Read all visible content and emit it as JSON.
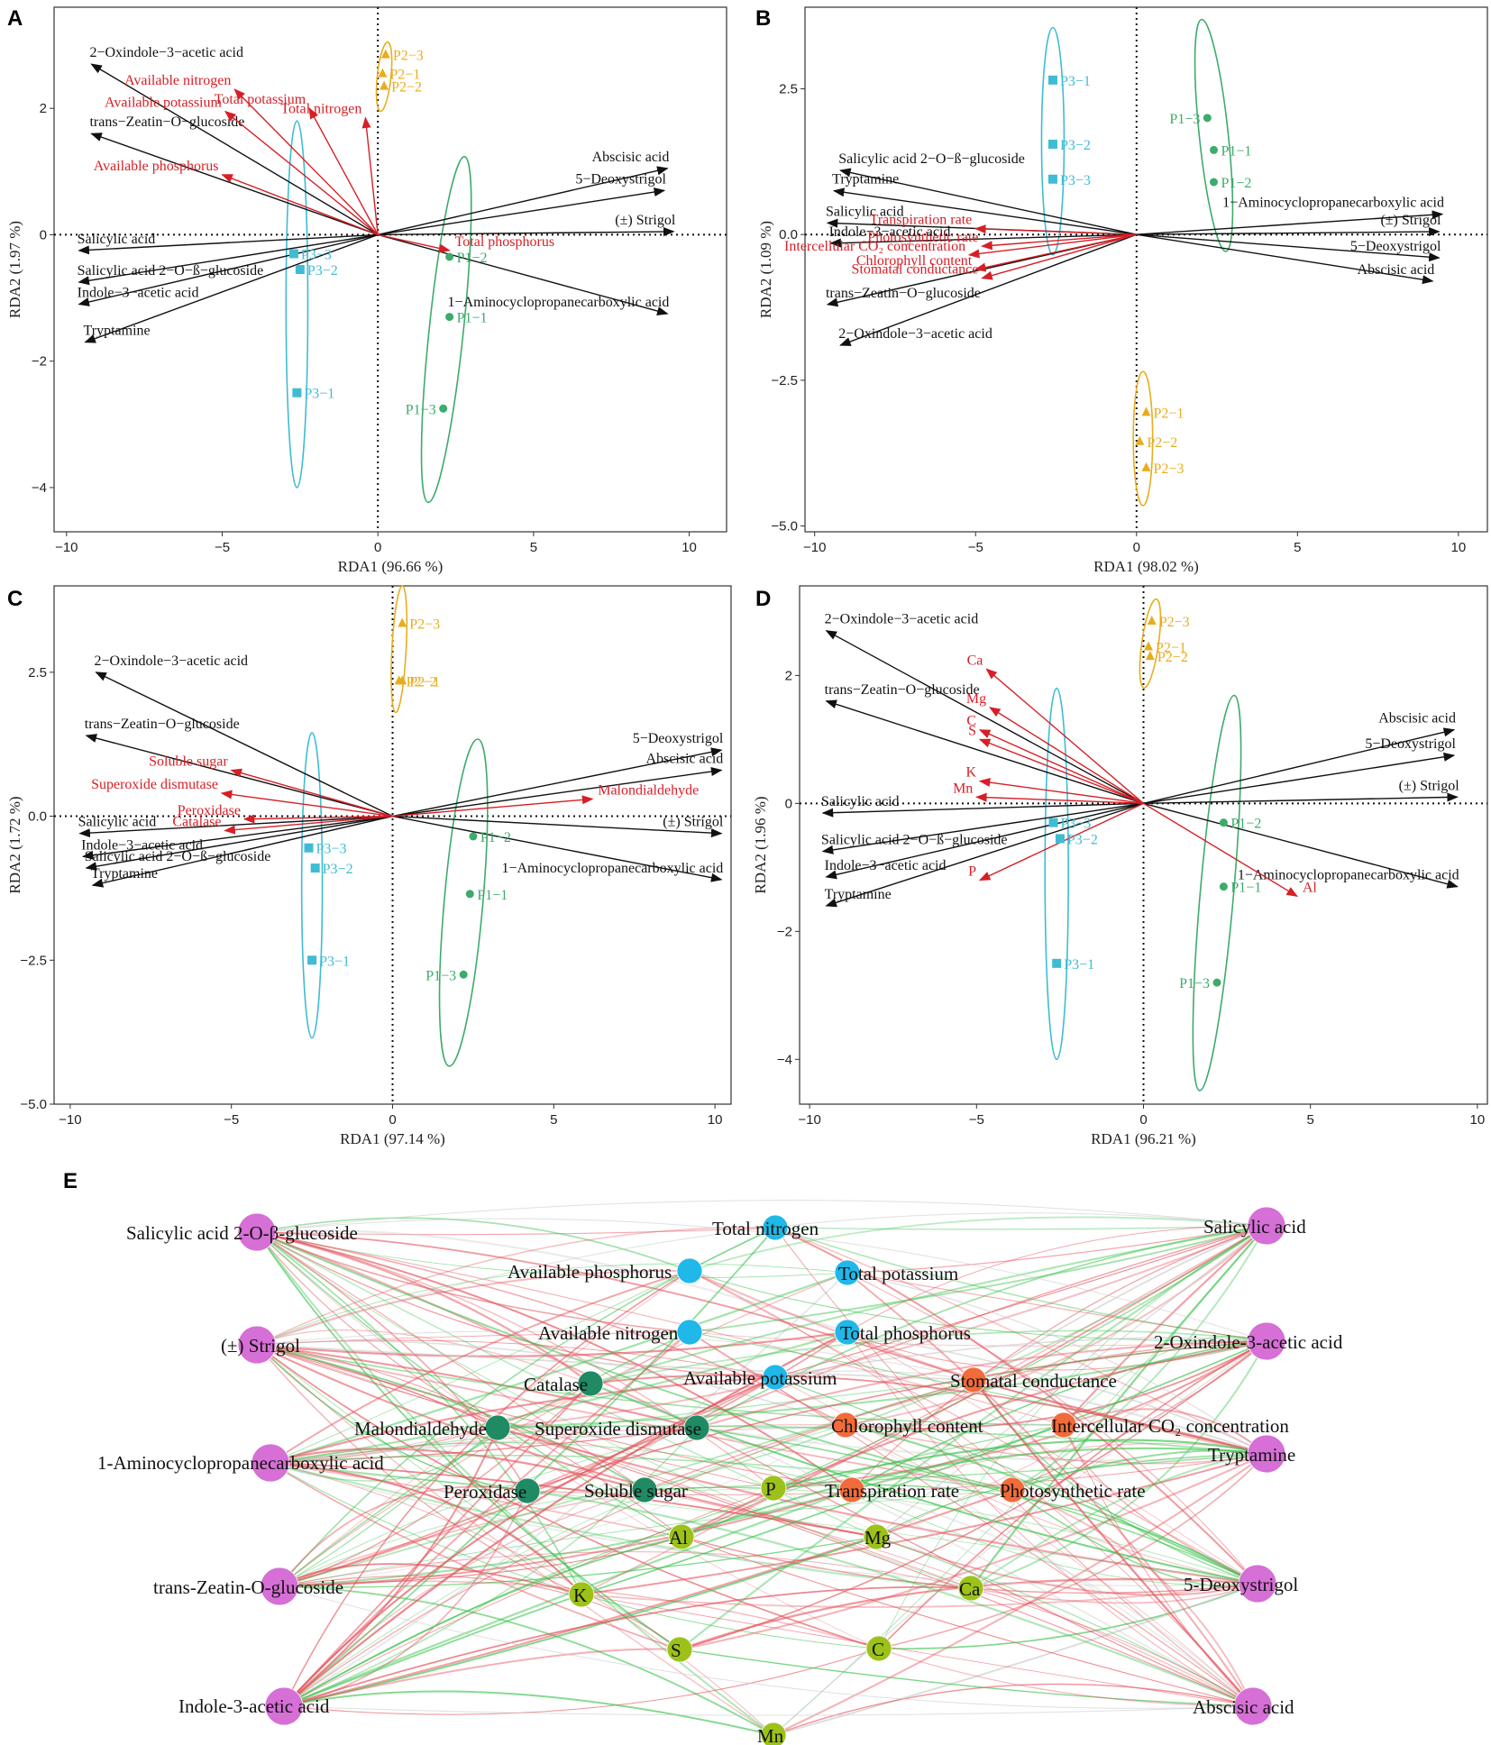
{
  "colors": {
    "P1": "#3dab6b",
    "P2": "#e8ad1f",
    "P3": "#3fbcd3",
    "hormone_arrow": "#111111",
    "env_arrow": "#d61f26",
    "hormone_node": "#d66fd6",
    "soil_node": "#1fb8e8",
    "enzyme_node": "#1f8a63",
    "photo_node": "#f26b3a",
    "mineral_node": "#9cc21a",
    "pos_edge": "#e5505a",
    "neg_edge": "#3dc44f",
    "weak_edge": "#cccccc"
  },
  "chart_data": [
    {
      "panel": "A",
      "type": "scatter",
      "xlabel": "RDA1 (96.66 %)",
      "ylabel": "RDA2 (1.97 %)",
      "xlim": [
        -10.4,
        11.2
      ],
      "ylim": [
        -4.7,
        3.6
      ],
      "xticks": [
        -10,
        -5,
        0,
        5,
        10
      ],
      "yticks": [
        -4,
        -2,
        0,
        2
      ],
      "hormones": [
        {
          "name": "2−Oxindole−3−acetic acid",
          "x": -9.2,
          "y": 2.7
        },
        {
          "name": "trans−Zeatin−O−glucoside",
          "x": -9.2,
          "y": 1.6
        },
        {
          "name": "Salicylic acid",
          "x": -9.6,
          "y": -0.25
        },
        {
          "name": "Salicylic acid 2−O−ß−glucoside",
          "x": -9.6,
          "y": -0.75
        },
        {
          "name": "Indole−3−acetic acid",
          "x": -9.6,
          "y": -1.1
        },
        {
          "name": "Tryptamine",
          "x": -9.4,
          "y": -1.7
        },
        {
          "name": "Abscisic acid",
          "x": 9.3,
          "y": 1.05
        },
        {
          "name": "5−Deoxystrigol",
          "x": 9.2,
          "y": 0.7
        },
        {
          "name": "(±) Strigol",
          "x": 9.5,
          "y": 0.05
        },
        {
          "name": "1−Aminocyclopropanecarboxylic acid",
          "x": 9.3,
          "y": -1.25
        }
      ],
      "environment": [
        {
          "name": "Available nitrogen",
          "x": -4.6,
          "y": 2.3
        },
        {
          "name": "Available potassium",
          "x": -4.9,
          "y": 1.95
        },
        {
          "name": "Total potassium",
          "x": -2.2,
          "y": 2.0
        },
        {
          "name": "Total nitrogen",
          "x": -0.4,
          "y": 1.85
        },
        {
          "name": "Available phosphorus",
          "x": -5.0,
          "y": 0.95
        },
        {
          "name": "Total phosphorus",
          "x": 2.3,
          "y": -0.25
        }
      ],
      "samples": [
        {
          "name": "P1−1",
          "group": "P1",
          "x": 2.3,
          "y": -1.3
        },
        {
          "name": "P1−2",
          "group": "P1",
          "x": 2.3,
          "y": -0.35
        },
        {
          "name": "P1−3",
          "group": "P1",
          "x": 2.1,
          "y": -2.75
        },
        {
          "name": "P2−1",
          "group": "P2",
          "x": 0.15,
          "y": 2.55
        },
        {
          "name": "P2−2",
          "group": "P2",
          "x": 0.2,
          "y": 2.35
        },
        {
          "name": "P2−3",
          "group": "P2",
          "x": 0.25,
          "y": 2.85
        },
        {
          "name": "P3−1",
          "group": "P3",
          "x": -2.6,
          "y": -2.5
        },
        {
          "name": "P3−2",
          "group": "P3",
          "x": -2.5,
          "y": -0.55
        },
        {
          "name": "P3−3",
          "group": "P3",
          "x": -2.7,
          "y": -0.3
        }
      ],
      "ellipses": [
        {
          "group": "P1",
          "cx": 2.2,
          "cy": -1.5,
          "rx": 0.55,
          "ry": 2.75,
          "rot": 6
        },
        {
          "group": "P2",
          "cx": 0.2,
          "cy": 2.5,
          "rx": 0.22,
          "ry": 0.55,
          "rot": 6
        },
        {
          "group": "P3",
          "cx": -2.6,
          "cy": -1.1,
          "rx": 0.35,
          "ry": 2.9,
          "rot": 0
        }
      ]
    },
    {
      "panel": "B",
      "type": "scatter",
      "xlabel": "RDA1 (98.02 %)",
      "ylabel": "RDA2 (1.09 %)",
      "xlim": [
        -10.3,
        10.9
      ],
      "ylim": [
        -5.1,
        3.9
      ],
      "xticks": [
        -10,
        -5,
        0,
        5,
        10
      ],
      "yticks": [
        -5.0,
        -2.5,
        0.0,
        2.5
      ],
      "hormones": [
        {
          "name": "Salicylic acid 2−O−ß−glucoside",
          "x": -9.2,
          "y": 1.1
        },
        {
          "name": "Tryptamine",
          "x": -9.4,
          "y": 0.75
        },
        {
          "name": "Salicylic acid",
          "x": -9.6,
          "y": 0.2
        },
        {
          "name": "Indole−3−acetic acid",
          "x": -9.5,
          "y": -0.15
        },
        {
          "name": "trans−Zeatin−O−glucoside",
          "x": -9.6,
          "y": -1.2
        },
        {
          "name": "2−Oxindole−3−acetic acid",
          "x": -9.2,
          "y": -1.9
        },
        {
          "name": "1−Aminocyclopropanecarboxylic acid",
          "x": 9.5,
          "y": 0.35
        },
        {
          "name": "(±) Strigol",
          "x": 9.4,
          "y": 0.05
        },
        {
          "name": "5−Deoxystrigol",
          "x": 9.4,
          "y": -0.4
        },
        {
          "name": "Abscisic acid",
          "x": 9.2,
          "y": -0.8
        }
      ],
      "environment": [
        {
          "name": "Transpiration rate",
          "x": -5.0,
          "y": 0.1
        },
        {
          "name": "Photosynthetic rate",
          "x": -4.8,
          "y": -0.2
        },
        {
          "name": "Intercellular CO₂ concentration",
          "x": -5.2,
          "y": -0.35
        },
        {
          "name": "Chlorophyll content",
          "x": -5.0,
          "y": -0.6
        },
        {
          "name": "Stomatal conductance",
          "x": -4.8,
          "y": -0.75
        }
      ],
      "samples": [
        {
          "name": "P1−1",
          "group": "P1",
          "x": 2.4,
          "y": 1.45
        },
        {
          "name": "P1−2",
          "group": "P1",
          "x": 2.4,
          "y": 0.9
        },
        {
          "name": "P1−3",
          "group": "P1",
          "x": 2.2,
          "y": 2.0
        },
        {
          "name": "P2−1",
          "group": "P2",
          "x": 0.3,
          "y": -3.05
        },
        {
          "name": "P2−2",
          "group": "P2",
          "x": 0.1,
          "y": -3.55
        },
        {
          "name": "P2−3",
          "group": "P2",
          "x": 0.3,
          "y": -4.0
        },
        {
          "name": "P3−1",
          "group": "P3",
          "x": -2.6,
          "y": 2.65
        },
        {
          "name": "P3−2",
          "group": "P3",
          "x": -2.6,
          "y": 1.55
        },
        {
          "name": "P3−3",
          "group": "P3",
          "x": -2.6,
          "y": 0.95
        }
      ],
      "ellipses": [
        {
          "group": "P1",
          "cx": 2.4,
          "cy": 1.7,
          "rx": 0.45,
          "ry": 2.0,
          "rot": -6
        },
        {
          "group": "P2",
          "cx": 0.2,
          "cy": -3.5,
          "rx": 0.3,
          "ry": 1.15,
          "rot": 0
        },
        {
          "group": "P3",
          "cx": -2.6,
          "cy": 1.6,
          "rx": 0.35,
          "ry": 1.95,
          "rot": 0
        }
      ]
    },
    {
      "panel": "C",
      "type": "scatter",
      "xlabel": "RDA1 (97.14 %)",
      "ylabel": "RDA2 (1.72 %)",
      "xlim": [
        -10.5,
        10.5
      ],
      "ylim": [
        -5.0,
        4.0
      ],
      "xticks": [
        -10,
        -5,
        0,
        5,
        10
      ],
      "yticks": [
        -5.0,
        -2.5,
        0.0,
        2.5
      ],
      "hormones": [
        {
          "name": "2−Oxindole−3−acetic acid",
          "x": -9.2,
          "y": 2.5
        },
        {
          "name": "trans−Zeatin−O−glucoside",
          "x": -9.5,
          "y": 1.4
        },
        {
          "name": "Salicylic acid",
          "x": -9.7,
          "y": -0.3
        },
        {
          "name": "Indole−3−acetic acid",
          "x": -9.6,
          "y": -0.7
        },
        {
          "name": "Salicylic acid 2−O−ß−glucoside",
          "x": -9.5,
          "y": -0.9
        },
        {
          "name": "Tryptamine",
          "x": -9.3,
          "y": -1.2
        },
        {
          "name": "5−Deoxystrigol",
          "x": 10.2,
          "y": 1.15
        },
        {
          "name": "Abscisic acid",
          "x": 10.2,
          "y": 0.8
        },
        {
          "name": "(±) Strigol",
          "x": 10.2,
          "y": -0.3
        },
        {
          "name": "1−Aminocyclopropanecarboxylic acid",
          "x": 10.2,
          "y": -1.1
        }
      ],
      "environment": [
        {
          "name": "Soluble sugar",
          "x": -5.0,
          "y": 0.8
        },
        {
          "name": "Superoxide dismutase",
          "x": -5.3,
          "y": 0.4
        },
        {
          "name": "Peroxidase",
          "x": -4.6,
          "y": -0.05
        },
        {
          "name": "Catalase",
          "x": -5.2,
          "y": -0.25
        },
        {
          "name": "Malondialdehyde",
          "x": 6.2,
          "y": 0.3
        }
      ],
      "samples": [
        {
          "name": "P1−1",
          "group": "P1",
          "x": 2.4,
          "y": -1.35
        },
        {
          "name": "P1−2",
          "group": "P1",
          "x": 2.5,
          "y": -0.35
        },
        {
          "name": "P1−3",
          "group": "P1",
          "x": 2.2,
          "y": -2.75
        },
        {
          "name": "P2−1",
          "group": "P2",
          "x": 0.3,
          "y": 2.35
        },
        {
          "name": "P2−2",
          "group": "P2",
          "x": 0.2,
          "y": 2.35
        },
        {
          "name": "P2−3",
          "group": "P2",
          "x": 0.3,
          "y": 3.35
        },
        {
          "name": "P3−1",
          "group": "P3",
          "x": -2.5,
          "y": -2.5
        },
        {
          "name": "P3−2",
          "group": "P3",
          "x": -2.4,
          "y": -0.9
        },
        {
          "name": "P3−3",
          "group": "P3",
          "x": -2.6,
          "y": -0.55
        }
      ],
      "ellipses": [
        {
          "group": "P1",
          "cx": 2.2,
          "cy": -1.5,
          "rx": 0.6,
          "ry": 2.85,
          "rot": 5
        },
        {
          "group": "P2",
          "cx": 0.2,
          "cy": 2.9,
          "rx": 0.22,
          "ry": 1.1,
          "rot": 3
        },
        {
          "group": "P3",
          "cx": -2.5,
          "cy": -1.2,
          "rx": 0.32,
          "ry": 2.65,
          "rot": 0
        }
      ]
    },
    {
      "panel": "D",
      "type": "scatter",
      "xlabel": "RDA1 (96.21 %)",
      "ylabel": "RDA2 (1.96 %)",
      "xlim": [
        -10.3,
        10.3
      ],
      "ylim": [
        -4.7,
        3.4
      ],
      "xticks": [
        -10,
        -5,
        0,
        5,
        10
      ],
      "yticks": [
        -4,
        -2,
        0,
        2
      ],
      "hormones": [
        {
          "name": "2−Oxindole−3−acetic acid",
          "x": -9.5,
          "y": 2.7
        },
        {
          "name": "trans−Zeatin−O−glucoside",
          "x": -9.5,
          "y": 1.6
        },
        {
          "name": "Salicylic acid",
          "x": -9.6,
          "y": -0.15
        },
        {
          "name": "Salicylic acid 2−O−ß−glucoside",
          "x": -9.6,
          "y": -0.75
        },
        {
          "name": "Indole−3−acetic acid",
          "x": -9.5,
          "y": -1.15
        },
        {
          "name": "Tryptamine",
          "x": -9.5,
          "y": -1.6
        },
        {
          "name": "Abscisic acid",
          "x": 9.3,
          "y": 1.15
        },
        {
          "name": "5−Deoxystrigol",
          "x": 9.3,
          "y": 0.75
        },
        {
          "name": "(±) Strigol",
          "x": 9.4,
          "y": 0.1
        },
        {
          "name": "1−Aminocyclopropanecarboxylic acid",
          "x": 9.4,
          "y": -1.3
        }
      ],
      "environment": [
        {
          "name": "Ca",
          "x": -4.7,
          "y": 2.1
        },
        {
          "name": "Mg",
          "x": -4.6,
          "y": 1.5
        },
        {
          "name": "C",
          "x": -4.9,
          "y": 1.15
        },
        {
          "name": "S",
          "x": -4.9,
          "y": 1.0
        },
        {
          "name": "K",
          "x": -4.9,
          "y": 0.35
        },
        {
          "name": "Mn",
          "x": -5.0,
          "y": 0.1
        },
        {
          "name": "P",
          "x": -4.9,
          "y": -1.2
        },
        {
          "name": "Al",
          "x": 4.6,
          "y": -1.45
        }
      ],
      "samples": [
        {
          "name": "P1−1",
          "group": "P1",
          "x": 2.4,
          "y": -1.3
        },
        {
          "name": "P1−2",
          "group": "P1",
          "x": 2.4,
          "y": -0.3
        },
        {
          "name": "P1−3",
          "group": "P1",
          "x": 2.2,
          "y": -2.8
        },
        {
          "name": "P2−1",
          "group": "P2",
          "x": 0.15,
          "y": 2.45
        },
        {
          "name": "P2−2",
          "group": "P2",
          "x": 0.2,
          "y": 2.3
        },
        {
          "name": "P2−3",
          "group": "P2",
          "x": 0.25,
          "y": 2.85
        },
        {
          "name": "P3−1",
          "group": "P3",
          "x": -2.6,
          "y": -2.5
        },
        {
          "name": "P3−2",
          "group": "P3",
          "x": -2.5,
          "y": -0.55
        },
        {
          "name": "P3−3",
          "group": "P3",
          "x": -2.7,
          "y": -0.3
        }
      ],
      "ellipses": [
        {
          "group": "P1",
          "cx": 2.2,
          "cy": -1.4,
          "rx": 0.5,
          "ry": 3.1,
          "rot": 5
        },
        {
          "group": "P2",
          "cx": 0.2,
          "cy": 2.5,
          "rx": 0.25,
          "ry": 0.7,
          "rot": 8
        },
        {
          "group": "P3",
          "cx": -2.6,
          "cy": -1.1,
          "rx": 0.35,
          "ry": 2.9,
          "rot": 0
        }
      ]
    },
    {
      "panel": "E",
      "type": "network",
      "nodes": [
        {
          "id": "Salicylic acid 2-O-β-glucoside",
          "group": "hormone"
        },
        {
          "id": "(±) Strigol",
          "group": "hormone"
        },
        {
          "id": "1-Aminocyclopropanecarboxylic acid",
          "group": "hormone"
        },
        {
          "id": "trans-Zeatin-O-glucoside",
          "group": "hormone"
        },
        {
          "id": "Indole-3-acetic acid",
          "group": "hormone"
        },
        {
          "id": "Salicylic acid",
          "group": "hormone"
        },
        {
          "id": "2-Oxindole-3-acetic acid",
          "group": "hormone"
        },
        {
          "id": "Tryptamine",
          "group": "hormone"
        },
        {
          "id": "5-Deoxystrigol",
          "group": "hormone"
        },
        {
          "id": "Abscisic acid",
          "group": "hormone"
        },
        {
          "id": "Total nitrogen",
          "group": "soil"
        },
        {
          "id": "Available phosphorus",
          "group": "soil"
        },
        {
          "id": "Total potassium",
          "group": "soil"
        },
        {
          "id": "Available nitrogen",
          "group": "soil"
        },
        {
          "id": "Total phosphorus",
          "group": "soil"
        },
        {
          "id": "Available potassium",
          "group": "soil"
        },
        {
          "id": "Catalase",
          "group": "enzyme"
        },
        {
          "id": "Malondialdehyde",
          "group": "enzyme"
        },
        {
          "id": "Superoxide dismutase",
          "group": "enzyme"
        },
        {
          "id": "Peroxidase",
          "group": "enzyme"
        },
        {
          "id": "Soluble sugar",
          "group": "enzyme"
        },
        {
          "id": "Stomatal conductance",
          "group": "photo"
        },
        {
          "id": "Chlorophyll content",
          "group": "photo"
        },
        {
          "id": "Intercellular CO₂ concentration",
          "group": "photo"
        },
        {
          "id": "Transpiration rate",
          "group": "photo"
        },
        {
          "id": "Photosynthetic rate",
          "group": "photo"
        },
        {
          "id": "P",
          "group": "mineral"
        },
        {
          "id": "Al",
          "group": "mineral"
        },
        {
          "id": "Mg",
          "group": "mineral"
        },
        {
          "id": "K",
          "group": "mineral"
        },
        {
          "id": "Ca",
          "group": "mineral"
        },
        {
          "id": "S",
          "group": "mineral"
        },
        {
          "id": "C",
          "group": "mineral"
        },
        {
          "id": "Mn",
          "group": "mineral"
        }
      ]
    }
  ]
}
